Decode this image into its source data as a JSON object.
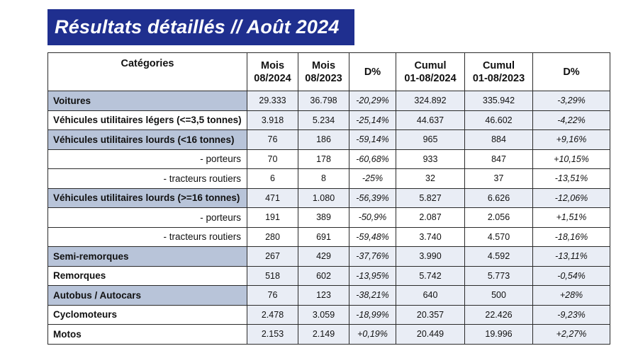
{
  "title": "Résultats détaillés // Août 2024",
  "table": {
    "headers": [
      {
        "line1": "Catégories",
        "line2": ""
      },
      {
        "line1": "Mois",
        "line2": "08/2024"
      },
      {
        "line1": "Mois",
        "line2": "08/2023"
      },
      {
        "line1": "D%",
        "line2": ""
      },
      {
        "line1": "Cumul",
        "line2": "01-08/2024"
      },
      {
        "line1": "Cumul",
        "line2": "01-08/2023"
      },
      {
        "line1": "D%",
        "line2": ""
      }
    ],
    "rows": [
      {
        "category": "Voitures",
        "m2024": "29.333",
        "m2023": "36.798",
        "d1": "-20,29%",
        "c2024": "324.892",
        "c2023": "335.942",
        "d2": "-3,29%"
      },
      {
        "category": "Véhicules utilitaires légers (<=3,5 tonnes)",
        "m2024": "3.918",
        "m2023": "5.234",
        "d1": "-25,14%",
        "c2024": "44.637",
        "c2023": "46.602",
        "d2": "-4,22%"
      },
      {
        "category": "Véhicules utilitaires lourds (<16 tonnes)",
        "m2024": "76",
        "m2023": "186",
        "d1": "-59,14%",
        "c2024": "965",
        "c2023": "884",
        "d2": "+9,16%"
      },
      {
        "category": "- porteurs",
        "m2024": "70",
        "m2023": "178",
        "d1": "-60,68%",
        "c2024": "933",
        "c2023": "847",
        "d2": "+10,15%"
      },
      {
        "category": "- tracteurs routiers",
        "m2024": "6",
        "m2023": "8",
        "d1": "-25%",
        "c2024": "32",
        "c2023": "37",
        "d2": "-13,51%"
      },
      {
        "category": "Véhicules utilitaires lourds (>=16 tonnes)",
        "m2024": "471",
        "m2023": "1.080",
        "d1": "-56,39%",
        "c2024": "5.827",
        "c2023": "6.626",
        "d2": "-12,06%"
      },
      {
        "category": "- porteurs",
        "m2024": "191",
        "m2023": "389",
        "d1": "-50,9%",
        "c2024": "2.087",
        "c2023": "2.056",
        "d2": "+1,51%"
      },
      {
        "category": "- tracteurs routiers",
        "m2024": "280",
        "m2023": "691",
        "d1": "-59,48%",
        "c2024": "3.740",
        "c2023": "4.570",
        "d2": "-18,16%"
      },
      {
        "category": "Semi-remorques",
        "m2024": "267",
        "m2023": "429",
        "d1": "-37,76%",
        "c2024": "3.990",
        "c2023": "4.592",
        "d2": "-13,11%"
      },
      {
        "category": "Remorques",
        "m2024": "518",
        "m2023": "602",
        "d1": "-13,95%",
        "c2024": "5.742",
        "c2023": "5.773",
        "d2": "-0,54%"
      },
      {
        "category": "Autobus / Autocars",
        "m2024": "76",
        "m2023": "123",
        "d1": "-38,21%",
        "c2024": "640",
        "c2023": "500",
        "d2": "+28%"
      },
      {
        "category": "Cyclomoteurs",
        "m2024": "2.478",
        "m2023": "3.059",
        "d1": "-18,99%",
        "c2024": "20.357",
        "c2023": "22.426",
        "d2": "-9,23%"
      },
      {
        "category": "Motos",
        "m2024": "2.153",
        "m2023": "2.149",
        "d1": "+0,19%",
        "c2024": "20.449",
        "c2023": "19.996",
        "d2": "+2,27%"
      }
    ]
  },
  "colors": {
    "banner": "#1f2f8f",
    "shaded_category": "#b8c4d9",
    "shaded_value": "#e9edf5"
  }
}
